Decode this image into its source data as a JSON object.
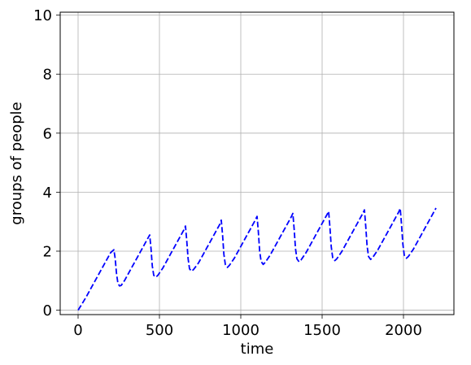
{
  "chart_data": {
    "type": "line",
    "title": "",
    "xlabel": "time",
    "ylabel": "groups of people",
    "xlim": [
      -110,
      2310
    ],
    "ylim": [
      -0.15,
      10.1
    ],
    "x_ticks": [
      0,
      500,
      1000,
      1500,
      2000
    ],
    "y_ticks": [
      0,
      2,
      4,
      6,
      8,
      10
    ],
    "x_tick_labels": [
      "0",
      "500",
      "1000",
      "1500",
      "2000"
    ],
    "y_tick_labels": [
      "0",
      "2",
      "4",
      "6",
      "8",
      "10"
    ],
    "grid": true,
    "legend": "none",
    "series": [
      {
        "color": "#0000ff",
        "line_style": "dashed",
        "points": [
          [
            0,
            0.0
          ],
          [
            25,
            0.22
          ],
          [
            50,
            0.45
          ],
          [
            100,
            0.95
          ],
          [
            150,
            1.45
          ],
          [
            200,
            1.95
          ],
          [
            220,
            2.05
          ],
          [
            228,
            1.75
          ],
          [
            236,
            1.25
          ],
          [
            245,
            0.9
          ],
          [
            255,
            0.82
          ],
          [
            265,
            0.84
          ],
          [
            285,
            1.0
          ],
          [
            330,
            1.45
          ],
          [
            380,
            1.95
          ],
          [
            420,
            2.35
          ],
          [
            440,
            2.55
          ],
          [
            448,
            2.1
          ],
          [
            456,
            1.5
          ],
          [
            465,
            1.18
          ],
          [
            478,
            1.12
          ],
          [
            490,
            1.18
          ],
          [
            520,
            1.42
          ],
          [
            570,
            1.92
          ],
          [
            620,
            2.42
          ],
          [
            650,
            2.72
          ],
          [
            660,
            2.85
          ],
          [
            668,
            2.35
          ],
          [
            676,
            1.75
          ],
          [
            685,
            1.4
          ],
          [
            698,
            1.32
          ],
          [
            710,
            1.38
          ],
          [
            740,
            1.6
          ],
          [
            790,
            2.1
          ],
          [
            840,
            2.6
          ],
          [
            870,
            2.9
          ],
          [
            880,
            3.05
          ],
          [
            888,
            2.55
          ],
          [
            896,
            1.9
          ],
          [
            905,
            1.55
          ],
          [
            918,
            1.45
          ],
          [
            930,
            1.52
          ],
          [
            960,
            1.76
          ],
          [
            1010,
            2.26
          ],
          [
            1060,
            2.76
          ],
          [
            1090,
            3.06
          ],
          [
            1100,
            3.18
          ],
          [
            1108,
            2.65
          ],
          [
            1116,
            2.0
          ],
          [
            1125,
            1.65
          ],
          [
            1138,
            1.55
          ],
          [
            1150,
            1.62
          ],
          [
            1180,
            1.86
          ],
          [
            1230,
            2.36
          ],
          [
            1280,
            2.86
          ],
          [
            1310,
            3.16
          ],
          [
            1320,
            3.28
          ],
          [
            1328,
            2.75
          ],
          [
            1336,
            2.1
          ],
          [
            1345,
            1.74
          ],
          [
            1358,
            1.64
          ],
          [
            1370,
            1.7
          ],
          [
            1400,
            1.94
          ],
          [
            1450,
            2.44
          ],
          [
            1500,
            2.94
          ],
          [
            1530,
            3.24
          ],
          [
            1540,
            3.35
          ],
          [
            1548,
            2.8
          ],
          [
            1556,
            2.15
          ],
          [
            1565,
            1.78
          ],
          [
            1578,
            1.68
          ],
          [
            1590,
            1.74
          ],
          [
            1620,
            1.98
          ],
          [
            1670,
            2.48
          ],
          [
            1720,
            2.98
          ],
          [
            1750,
            3.28
          ],
          [
            1760,
            3.4
          ],
          [
            1768,
            2.85
          ],
          [
            1776,
            2.2
          ],
          [
            1785,
            1.82
          ],
          [
            1798,
            1.72
          ],
          [
            1810,
            1.78
          ],
          [
            1840,
            2.02
          ],
          [
            1890,
            2.52
          ],
          [
            1940,
            3.02
          ],
          [
            1970,
            3.32
          ],
          [
            1980,
            3.45
          ],
          [
            1988,
            2.9
          ],
          [
            1996,
            2.25
          ],
          [
            2005,
            1.86
          ],
          [
            2018,
            1.76
          ],
          [
            2030,
            1.82
          ],
          [
            2060,
            2.06
          ],
          [
            2110,
            2.56
          ],
          [
            2160,
            3.06
          ],
          [
            2200,
            3.46
          ]
        ]
      }
    ]
  }
}
